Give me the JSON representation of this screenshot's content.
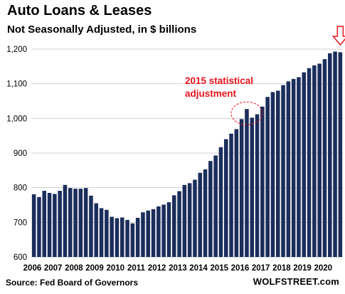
{
  "chart_data": {
    "type": "bar",
    "title": "Auto Loans & Leases",
    "subtitle": "Not Seasonally Adjusted, in $ billions",
    "xlabel": "",
    "ylabel": "",
    "ylim": [
      600,
      1200
    ],
    "yticks": [
      600,
      700,
      800,
      900,
      "1,000",
      "1,100",
      "1,200"
    ],
    "ytick_values": [
      600,
      700,
      800,
      900,
      1000,
      1100,
      1200
    ],
    "xticks": [
      "2006",
      "2007",
      "2008",
      "2009",
      "2010",
      "2011",
      "2012",
      "2013",
      "2014",
      "2015",
      "2016",
      "2017",
      "2018",
      "2019",
      "2020"
    ],
    "bar_color": "#1b2d5b",
    "accent_color": "#e8141c",
    "grid": true,
    "values": [
      781,
      773,
      791,
      785,
      782,
      791,
      808,
      799,
      797,
      797,
      799,
      777,
      755,
      741,
      736,
      716,
      712,
      714,
      707,
      697,
      713,
      729,
      734,
      738,
      746,
      751,
      758,
      778,
      790,
      808,
      813,
      823,
      843,
      853,
      877,
      893,
      917,
      940,
      956,
      969,
      998,
      1027,
      1002,
      1012,
      1034,
      1062,
      1076,
      1080,
      1096,
      1107,
      1114,
      1119,
      1133,
      1145,
      1153,
      1158,
      1171,
      1188,
      1193,
      1191
    ],
    "annotation": {
      "text_line1": "2015 statistical",
      "text_line2": "adjustment",
      "highlight_index": 41
    }
  },
  "footer": {
    "source": "Source: Fed Board of Governors",
    "brand": "WOLFSTREET.com"
  }
}
